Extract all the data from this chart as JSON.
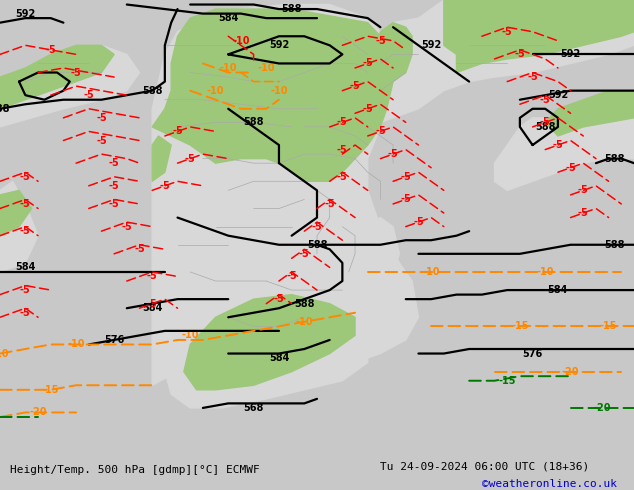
{
  "title_left": "Height/Temp. 500 hPa [gdmp][°C] ECMWF",
  "title_right": "Tu 24-09-2024 06:00 UTC (18+36)",
  "credit": "©weatheronline.co.uk",
  "bg_color": "#c8c8c8",
  "ocean_color": "#c8c8c8",
  "land_color": "#d8d8d8",
  "green_color": "#9dc87a",
  "black": "#000000",
  "red": "#ff0000",
  "orange": "#ff8800",
  "dgreen": "#007700",
  "figsize": [
    6.34,
    4.9
  ],
  "dpi": 100,
  "font_size_bottom": 8,
  "font_size_credit": 8,
  "font_size_label": 7
}
